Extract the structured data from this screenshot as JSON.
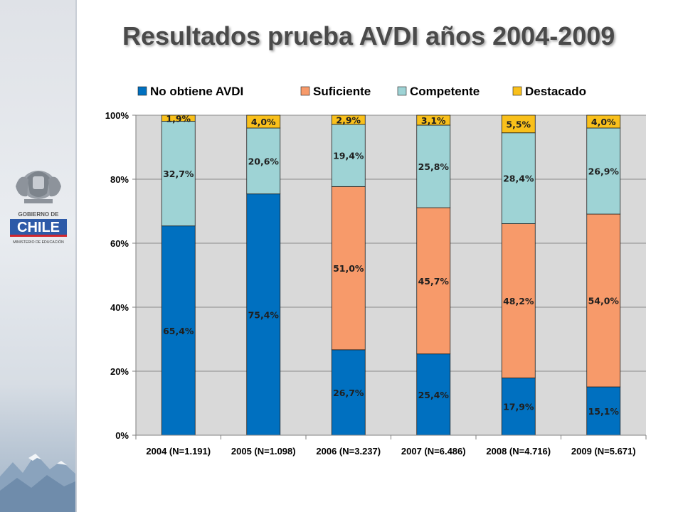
{
  "slide": {
    "title": "Resultados prueba AVDI años 2004-2009"
  },
  "logo": {
    "line1": "GOBIERNO DE",
    "line2": "CHILE",
    "line3": "MINISTERIO DE EDUCACIÓN"
  },
  "chart_data": {
    "type": "bar",
    "stacked": true,
    "categories": [
      "2004 (N=1.191)",
      "2005 (N=1.098)",
      "2006 (N=3.237)",
      "2007 (N=6.486)",
      "2008 (N=4.716)",
      "2009 (N=5.671)"
    ],
    "series": [
      {
        "name": "No obtiene AVDI",
        "color": "#0070c0",
        "values": [
          65.4,
          75.4,
          26.7,
          25.4,
          17.9,
          15.1
        ],
        "labels": [
          "65,4%",
          "75,4%",
          "26,7%",
          "25,4%",
          "17,9%",
          "15,1%"
        ]
      },
      {
        "name": "Suficiente",
        "color": "#f79a6a",
        "values": [
          0,
          0,
          51.0,
          45.7,
          48.2,
          54.0
        ],
        "labels": [
          "",
          "",
          "51,0%",
          "45,7%",
          "48,2%",
          "54,0%"
        ]
      },
      {
        "name": "Competente",
        "color": "#9ed3d5",
        "values": [
          32.7,
          20.6,
          19.4,
          25.8,
          28.4,
          26.9
        ],
        "labels": [
          "32,7%",
          "20,6%",
          "19,4%",
          "25,8%",
          "28,4%",
          "26,9%"
        ]
      },
      {
        "name": "Destacado",
        "color": "#f9c01b",
        "values": [
          1.9,
          4.0,
          2.9,
          3.1,
          5.5,
          4.0
        ],
        "labels": [
          "1,9%",
          "4,0%",
          "2,9%",
          "3,1%",
          "5,5%",
          "4,0%"
        ]
      }
    ],
    "y_ticks": [
      "0%",
      "20%",
      "40%",
      "60%",
      "80%",
      "100%"
    ],
    "ylim": [
      0,
      100
    ],
    "grid": true,
    "legend_position": "top"
  }
}
